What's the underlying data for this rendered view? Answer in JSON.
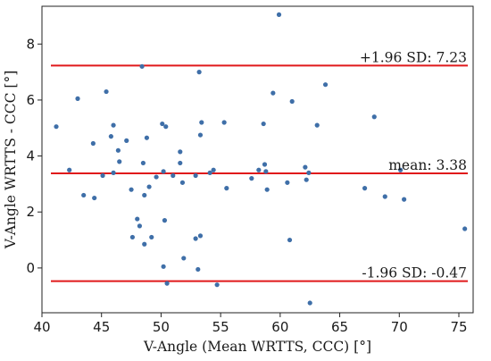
{
  "chart_data": {
    "type": "scatter",
    "title": "",
    "xlabel": "V-Angle (Mean WRTTS, CCC) [°]",
    "ylabel": "V-Angle WRTTS - CCC [°]",
    "xlim": [
      40,
      76.2
    ],
    "ylim": [
      -1.6,
      9.35
    ],
    "xticks": [
      40,
      45,
      50,
      55,
      60,
      65,
      70,
      75
    ],
    "yticks": [
      0,
      2,
      4,
      6,
      8
    ],
    "grid": false,
    "point_color": "#3f6fa8",
    "line_color": "#e0191b",
    "reference_lines": [
      {
        "name": "upper-loa",
        "label": "+1.96 SD:  7.23",
        "value": 7.23
      },
      {
        "name": "mean",
        "label": "mean:  3.38",
        "value": 3.38
      },
      {
        "name": "lower-loa",
        "label": "-1.96 SD:  -0.47",
        "value": -0.47
      }
    ],
    "points": [
      {
        "x": 41.2,
        "y": 5.05
      },
      {
        "x": 42.3,
        "y": 3.5
      },
      {
        "x": 43.0,
        "y": 6.05
      },
      {
        "x": 43.5,
        "y": 2.6
      },
      {
        "x": 44.3,
        "y": 4.45
      },
      {
        "x": 44.4,
        "y": 2.5
      },
      {
        "x": 45.1,
        "y": 3.3
      },
      {
        "x": 45.4,
        "y": 6.3
      },
      {
        "x": 45.8,
        "y": 4.7
      },
      {
        "x": 46.0,
        "y": 5.1
      },
      {
        "x": 46.0,
        "y": 3.4
      },
      {
        "x": 46.4,
        "y": 4.2
      },
      {
        "x": 46.5,
        "y": 3.8
      },
      {
        "x": 47.1,
        "y": 4.55
      },
      {
        "x": 47.5,
        "y": 2.8
      },
      {
        "x": 47.6,
        "y": 1.1
      },
      {
        "x": 48.0,
        "y": 1.75
      },
      {
        "x": 48.2,
        "y": 1.5
      },
      {
        "x": 48.4,
        "y": 7.2
      },
      {
        "x": 48.5,
        "y": 3.75
      },
      {
        "x": 48.6,
        "y": 2.6
      },
      {
        "x": 48.6,
        "y": 0.85
      },
      {
        "x": 48.8,
        "y": 4.65
      },
      {
        "x": 49.0,
        "y": 2.9
      },
      {
        "x": 49.2,
        "y": 1.1
      },
      {
        "x": 49.6,
        "y": 3.25
      },
      {
        "x": 50.1,
        "y": 5.15
      },
      {
        "x": 50.2,
        "y": 3.45
      },
      {
        "x": 50.2,
        "y": 0.05
      },
      {
        "x": 50.3,
        "y": 1.7
      },
      {
        "x": 50.4,
        "y": 5.05
      },
      {
        "x": 50.5,
        "y": -0.55
      },
      {
        "x": 51.0,
        "y": 3.3
      },
      {
        "x": 51.6,
        "y": 3.75
      },
      {
        "x": 51.6,
        "y": 4.15
      },
      {
        "x": 51.8,
        "y": 3.05
      },
      {
        "x": 51.9,
        "y": 0.35
      },
      {
        "x": 52.9,
        "y": 3.3
      },
      {
        "x": 52.9,
        "y": 1.05
      },
      {
        "x": 53.1,
        "y": -0.05
      },
      {
        "x": 53.2,
        "y": 7.0
      },
      {
        "x": 53.3,
        "y": 1.15
      },
      {
        "x": 53.3,
        "y": 4.75
      },
      {
        "x": 53.4,
        "y": 5.2
      },
      {
        "x": 54.1,
        "y": 3.4
      },
      {
        "x": 54.4,
        "y": 3.5
      },
      {
        "x": 54.7,
        "y": -0.6
      },
      {
        "x": 55.3,
        "y": 5.2
      },
      {
        "x": 55.5,
        "y": 2.85
      },
      {
        "x": 57.6,
        "y": 3.2
      },
      {
        "x": 58.2,
        "y": 3.5
      },
      {
        "x": 58.6,
        "y": 5.15
      },
      {
        "x": 58.7,
        "y": 3.7
      },
      {
        "x": 58.8,
        "y": 3.45
      },
      {
        "x": 58.9,
        "y": 2.8
      },
      {
        "x": 59.4,
        "y": 6.25
      },
      {
        "x": 59.9,
        "y": 9.05
      },
      {
        "x": 60.6,
        "y": 3.05
      },
      {
        "x": 60.8,
        "y": 1.0
      },
      {
        "x": 61.0,
        "y": 5.95
      },
      {
        "x": 62.1,
        "y": 3.6
      },
      {
        "x": 62.2,
        "y": 3.15
      },
      {
        "x": 62.4,
        "y": 3.4
      },
      {
        "x": 62.5,
        "y": -1.25
      },
      {
        "x": 63.1,
        "y": 5.1
      },
      {
        "x": 63.8,
        "y": 6.55
      },
      {
        "x": 67.1,
        "y": 2.85
      },
      {
        "x": 67.9,
        "y": 5.4
      },
      {
        "x": 68.8,
        "y": 2.55
      },
      {
        "x": 70.1,
        "y": 3.5
      },
      {
        "x": 70.4,
        "y": 2.45
      },
      {
        "x": 75.5,
        "y": 1.4
      }
    ]
  }
}
